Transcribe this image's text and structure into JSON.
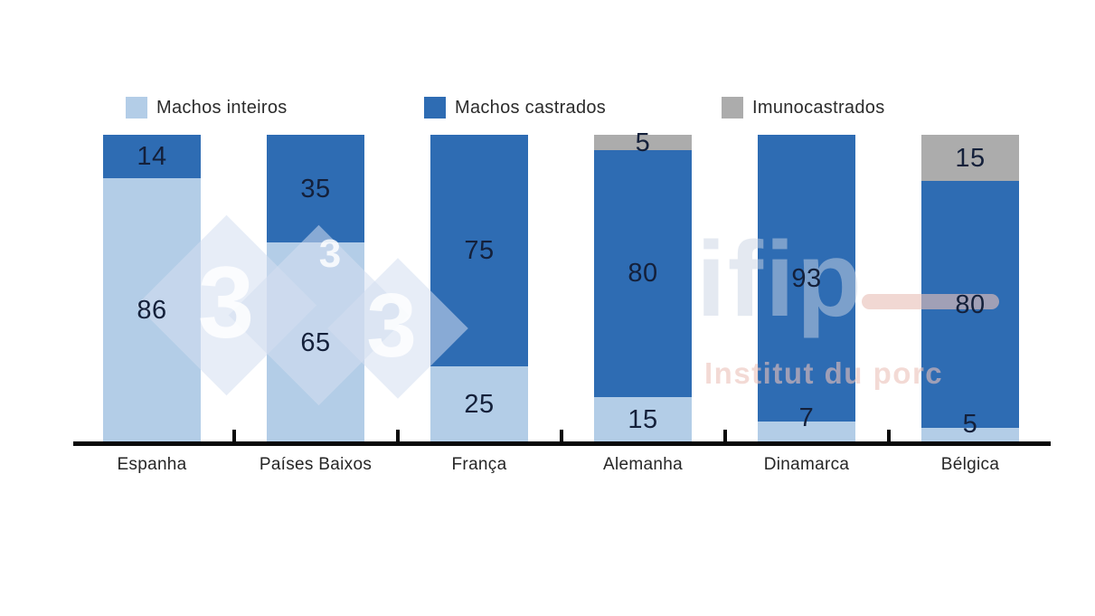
{
  "chart_data": {
    "type": "bar",
    "stacked": true,
    "orientation": "vertical",
    "unit": "percent",
    "title": "",
    "xlabel": "",
    "ylabel": "",
    "categories": [
      "Espanha",
      "Países Baixos",
      "França",
      "Alemanha",
      "Dinamarca",
      "Bélgica"
    ],
    "series": [
      {
        "name": "Machos inteiros",
        "color": "#b3cde7",
        "values": [
          86,
          65,
          25,
          15,
          7,
          5
        ]
      },
      {
        "name": "Machos castrados",
        "color": "#2e6cb3",
        "values": [
          14,
          35,
          75,
          80,
          93,
          80
        ]
      },
      {
        "name": "Imunocastrados",
        "color": "#acacac",
        "values": [
          0,
          0,
          0,
          5,
          0,
          15
        ]
      }
    ],
    "ylim": [
      0,
      100
    ],
    "legend_position": "top",
    "grid": false,
    "value_labels": true,
    "value_label_color": "#14203a",
    "axis_color": "#0a0a0a"
  },
  "watermarks": {
    "site_logo_threes": [
      "3",
      "3",
      "3"
    ],
    "ifip_name": "ifip",
    "ifip_subtitle": "Institut du porc"
  }
}
